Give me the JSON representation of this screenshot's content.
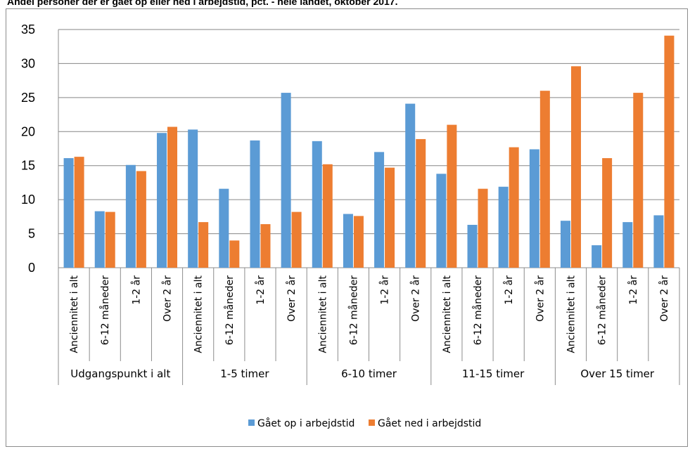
{
  "chart_data": {
    "type": "bar",
    "title": "Andel personer der er gået op eller ned i arbejdstid, pct. - hele landet, oktober 2017.",
    "xlabel": "",
    "ylabel": "",
    "ylim": [
      0,
      35
    ],
    "yticks": [
      0,
      5,
      10,
      15,
      20,
      25,
      30,
      35
    ],
    "grid": true,
    "legend_position": "bottom",
    "groups": [
      {
        "label": "Udgangspunkt i alt",
        "categories": [
          "Anciennitet i alt",
          "6-12 måneder",
          "1-2 år",
          "Over 2 år"
        ]
      },
      {
        "label": "1-5 timer",
        "categories": [
          "Anciennitet i alt",
          "6-12 måneder",
          "1-2 år",
          "Over 2 år"
        ]
      },
      {
        "label": "6-10 timer",
        "categories": [
          "Anciennitet i alt",
          "6-12 måneder",
          "1-2 år",
          "Over 2 år"
        ]
      },
      {
        "label": "11-15 timer",
        "categories": [
          "Anciennitet i alt",
          "6-12 måneder",
          "1-2 år",
          "Over 2 år"
        ]
      },
      {
        "label": "Over 15 timer",
        "categories": [
          "Anciennitet i alt",
          "6-12 måneder",
          "1-2 år",
          "Over 2 år"
        ]
      }
    ],
    "series": [
      {
        "name": "Gået op i arbejdstid",
        "color": "#5b9bd5",
        "values": [
          16.1,
          8.3,
          15.1,
          19.8,
          20.3,
          11.6,
          18.7,
          25.7,
          18.6,
          7.9,
          17.0,
          24.1,
          13.8,
          6.3,
          11.9,
          17.4,
          6.9,
          3.3,
          6.7,
          7.7
        ]
      },
      {
        "name": "Gået ned i arbejdstid",
        "color": "#ed7d31",
        "values": [
          16.3,
          8.2,
          14.2,
          20.7,
          6.7,
          4.0,
          6.4,
          8.2,
          15.2,
          7.6,
          14.7,
          18.9,
          21.0,
          11.6,
          17.7,
          26.0,
          29.6,
          16.1,
          25.7,
          34.1
        ]
      }
    ]
  }
}
